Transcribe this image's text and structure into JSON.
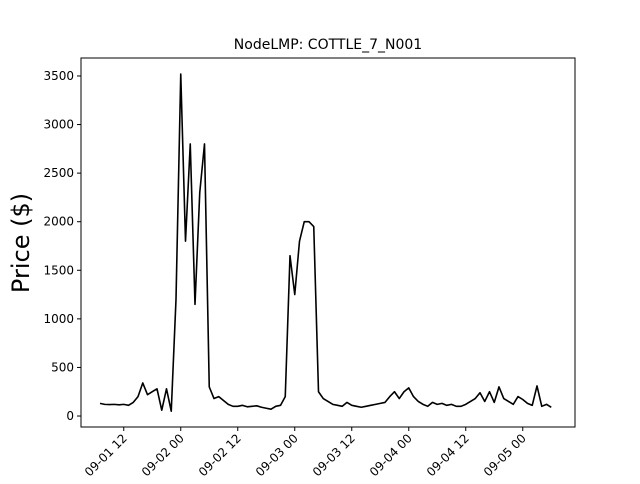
{
  "chart_data": {
    "type": "line",
    "title": "NodeLMP: COTTLE_7_N001",
    "y_label": "Price ($)",
    "x": [
      "09-01 07",
      "09-01 08",
      "09-01 09",
      "09-01 10",
      "09-01 11",
      "09-01 12",
      "09-01 13",
      "09-01 14",
      "09-01 15",
      "09-01 16",
      "09-01 17",
      "09-01 18",
      "09-01 19",
      "09-01 20",
      "09-01 21",
      "09-01 22",
      "09-01 23",
      "09-02 00",
      "09-02 01",
      "09-02 02",
      "09-02 03",
      "09-02 04",
      "09-02 05",
      "09-02 06",
      "09-02 07",
      "09-02 08",
      "09-02 09",
      "09-02 10",
      "09-02 11",
      "09-02 12",
      "09-02 13",
      "09-02 14",
      "09-02 15",
      "09-02 16",
      "09-02 17",
      "09-02 18",
      "09-02 19",
      "09-02 20",
      "09-02 21",
      "09-02 22",
      "09-02 23",
      "09-03 00",
      "09-03 01",
      "09-03 02",
      "09-03 03",
      "09-03 04",
      "09-03 05",
      "09-03 06",
      "09-03 07",
      "09-03 08",
      "09-03 09",
      "09-03 10",
      "09-03 11",
      "09-03 12",
      "09-03 13",
      "09-03 14",
      "09-03 15",
      "09-03 16",
      "09-03 17",
      "09-03 18",
      "09-03 19",
      "09-03 20",
      "09-03 21",
      "09-03 22",
      "09-03 23",
      "09-04 00",
      "09-04 01",
      "09-04 02",
      "09-04 03",
      "09-04 04",
      "09-04 05",
      "09-04 06",
      "09-04 07",
      "09-04 08",
      "09-04 09",
      "09-04 10",
      "09-04 11",
      "09-04 12",
      "09-04 13",
      "09-04 14",
      "09-04 15",
      "09-04 16",
      "09-04 17",
      "09-04 18",
      "09-04 19",
      "09-04 20",
      "09-04 21",
      "09-04 22",
      "09-04 23",
      "09-05 00",
      "09-05 01",
      "09-05 02",
      "09-05 03",
      "09-05 04",
      "09-05 05",
      "09-05 06"
    ],
    "series": [
      {
        "color": "#000000",
        "values": [
          130,
          120,
          118,
          120,
          115,
          120,
          110,
          140,
          200,
          340,
          220,
          250,
          280,
          60,
          280,
          50,
          1200,
          3520,
          1800,
          2800,
          1150,
          2300,
          2800,
          300,
          180,
          200,
          160,
          120,
          100,
          100,
          110,
          95,
          100,
          105,
          90,
          80,
          70,
          100,
          110,
          200,
          1650,
          1250,
          1800,
          2000,
          2000,
          1950,
          250,
          180,
          150,
          120,
          110,
          100,
          140,
          110,
          100,
          90,
          100,
          110,
          120,
          130,
          140,
          200,
          250,
          180,
          250,
          290,
          200,
          150,
          120,
          100,
          140,
          120,
          130,
          110,
          120,
          100,
          100,
          120,
          150,
          180,
          240,
          150,
          250,
          140,
          300,
          180,
          150,
          120,
          200,
          170,
          130,
          110,
          310,
          100,
          120,
          90
        ]
      }
    ],
    "xlim": [
      "09-01 03",
      "09-05 11"
    ],
    "xticks": [
      "09-01 12",
      "09-02 00",
      "09-02 12",
      "09-03 00",
      "09-03 12",
      "09-04 00",
      "09-04 12",
      "09-05 00"
    ],
    "ylim": [
      -113,
      3685
    ],
    "yticks": [
      0,
      500,
      1000,
      1500,
      2000,
      2500,
      3000,
      3500
    ]
  }
}
